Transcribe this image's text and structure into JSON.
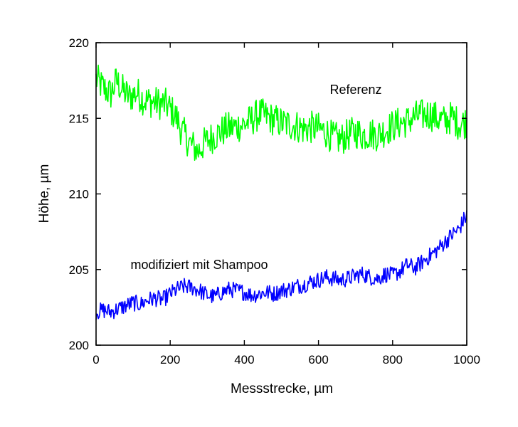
{
  "chart_data": {
    "type": "line",
    "xlabel": "Messstrecke, µm",
    "ylabel": "Höhe, µm",
    "xlim": [
      0,
      1000
    ],
    "ylim": [
      200,
      220
    ],
    "x_ticks": [
      0,
      200,
      400,
      600,
      800,
      1000
    ],
    "y_ticks": [
      200,
      205,
      210,
      215,
      220
    ],
    "grid": false,
    "annotations": [
      "Referenz",
      "modifiziert mit Shampoo"
    ],
    "colors": {
      "reference": "#00ff00",
      "modified": "#0000ff"
    },
    "series": [
      {
        "annotation": "Referenz",
        "color": "#00ff00",
        "x": [
          0,
          20,
          40,
          55,
          70,
          90,
          110,
          130,
          150,
          170,
          190,
          210,
          220,
          230,
          240,
          250,
          260,
          275,
          290,
          310,
          330,
          350,
          370,
          400,
          420,
          440,
          460,
          480,
          500,
          520,
          540,
          560,
          580,
          600,
          620,
          640,
          660,
          680,
          700,
          720,
          740,
          760,
          780,
          800,
          820,
          840,
          860,
          880,
          900,
          920,
          940,
          960,
          980,
          1000
        ],
        "y": [
          217.6,
          217.0,
          216.6,
          217.5,
          216.9,
          216.4,
          216.7,
          216.2,
          216.1,
          216.0,
          215.9,
          215.3,
          214.9,
          214.2,
          213.9,
          213.4,
          213.2,
          212.8,
          213.3,
          213.7,
          214.0,
          214.3,
          214.4,
          214.6,
          214.9,
          215.3,
          215.1,
          214.9,
          214.7,
          214.6,
          214.5,
          214.3,
          214.4,
          214.3,
          214.1,
          213.7,
          213.6,
          213.9,
          214.1,
          213.9,
          214.0,
          213.9,
          214.2,
          214.5,
          214.7,
          214.8,
          215.1,
          215.2,
          215.3,
          215.0,
          214.8,
          215.1,
          214.6,
          214.8
        ]
      },
      {
        "annotation": "modifiziert mit Shampoo",
        "color": "#0000ff",
        "x": [
          0,
          20,
          40,
          60,
          80,
          100,
          120,
          140,
          160,
          180,
          200,
          220,
          240,
          260,
          280,
          300,
          320,
          340,
          360,
          380,
          400,
          420,
          440,
          460,
          480,
          500,
          520,
          540,
          560,
          580,
          600,
          620,
          640,
          660,
          680,
          700,
          720,
          740,
          760,
          780,
          800,
          820,
          840,
          860,
          880,
          900,
          920,
          940,
          960,
          980,
          990,
          1000
        ],
        "y": [
          202.2,
          202.3,
          202.2,
          202.4,
          202.6,
          202.8,
          202.7,
          203.0,
          203.1,
          203.0,
          203.4,
          203.7,
          203.9,
          203.8,
          203.6,
          203.3,
          203.2,
          203.5,
          203.7,
          203.6,
          203.5,
          203.3,
          203.4,
          203.5,
          203.4,
          203.6,
          203.7,
          203.9,
          204.0,
          204.2,
          204.3,
          204.5,
          204.4,
          204.3,
          204.4,
          204.6,
          204.7,
          204.5,
          204.4,
          204.7,
          204.6,
          204.9,
          205.3,
          205.1,
          205.5,
          205.9,
          206.3,
          206.8,
          207.3,
          207.7,
          208.2,
          208.6
        ]
      }
    ]
  }
}
